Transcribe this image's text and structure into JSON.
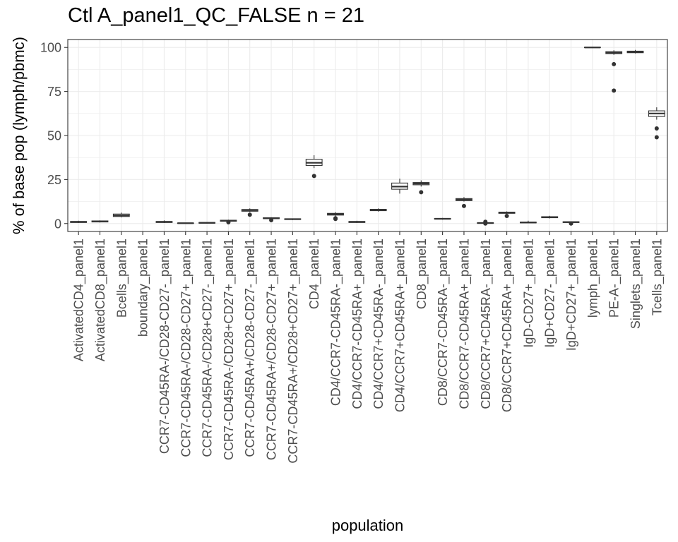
{
  "chart_data": {
    "type": "box",
    "title": "Ctl A_panel1_QC_FALSE n = 21",
    "xlabel": "population",
    "ylabel": "% of base pop (lymph/pbmc)",
    "ylim": [
      -4.5,
      104.5
    ],
    "yticks": [
      0,
      25,
      50,
      75,
      100
    ],
    "grid": true,
    "theme": "bw",
    "colors": {
      "box_fill": "#ffffff",
      "box_line": "#333333",
      "grid": "#ebebeb",
      "panel_border": "#333333"
    },
    "categories": [
      "ActivatedCD4_panel1",
      "ActivatedCD8_panel1",
      "Bcells_panel1",
      "boundary_panel1",
      "CCR7-CD45RA-/CD28-CD27-_panel1",
      "CCR7-CD45RA-/CD28-CD27+_panel1",
      "CCR7-CD45RA-/CD28+CD27-_panel1",
      "CCR7-CD45RA-/CD28+CD27+_panel1",
      "CCR7-CD45RA+/CD28-CD27-_panel1",
      "CCR7-CD45RA+/CD28-CD27+_panel1",
      "CCR7-CD45RA+/CD28+CD27+_panel1",
      "CD4_panel1",
      "CD4/CCR7-CD45RA-_panel1",
      "CD4/CCR7-CD45RA+_panel1",
      "CD4/CCR7+CD45RA-_panel1",
      "CD4/CCR7+CD45RA+_panel1",
      "CD8_panel1",
      "CD8/CCR7-CD45RA-_panel1",
      "CD8/CCR7-CD45RA+_panel1",
      "CD8/CCR7+CD45RA-_panel1",
      "CD8/CCR7+CD45RA+_panel1",
      "IgD-CD27+_panel1",
      "IgD+CD27-_panel1",
      "IgD+CD27+_panel1",
      "lymph_panel1",
      "PE-A-_panel1",
      "Singlets_panel1",
      "Tcells_panel1"
    ],
    "boxes": [
      {
        "min": 0.3,
        "q1": 0.6,
        "median": 0.9,
        "q3": 1.2,
        "max": 1.6,
        "outliers": []
      },
      {
        "min": 0.6,
        "q1": 0.9,
        "median": 1.2,
        "q3": 1.5,
        "max": 1.8,
        "outliers": []
      },
      {
        "min": 3.5,
        "q1": 4.0,
        "median": 4.6,
        "q3": 5.4,
        "max": 6.2,
        "outliers": []
      },
      null,
      {
        "min": 0.3,
        "q1": 0.6,
        "median": 0.9,
        "q3": 1.2,
        "max": 1.8,
        "outliers": []
      },
      {
        "min": 0.0,
        "q1": 0.1,
        "median": 0.2,
        "q3": 0.3,
        "max": 0.4,
        "outliers": []
      },
      {
        "min": 0.0,
        "q1": 0.2,
        "median": 0.4,
        "q3": 0.6,
        "max": 0.9,
        "outliers": []
      },
      {
        "min": 0.9,
        "q1": 1.3,
        "median": 1.6,
        "q3": 1.9,
        "max": 2.2,
        "outliers": [
          0.7
        ]
      },
      {
        "min": 6.5,
        "q1": 7.0,
        "median": 7.6,
        "q3": 8.0,
        "max": 8.6,
        "outliers": [
          5.0
        ]
      },
      {
        "min": 2.5,
        "q1": 2.8,
        "median": 3.0,
        "q3": 3.3,
        "max": 3.6,
        "outliers": [
          1.9
        ]
      },
      {
        "min": 2.0,
        "q1": 2.3,
        "median": 2.5,
        "q3": 2.7,
        "max": 2.9,
        "outliers": []
      },
      {
        "min": 31.5,
        "q1": 33.0,
        "median": 34.5,
        "q3": 36.5,
        "max": 38.8,
        "outliers": [
          27.0
        ]
      },
      {
        "min": 4.0,
        "q1": 4.8,
        "median": 5.3,
        "q3": 5.8,
        "max": 6.5,
        "outliers": [
          3.0,
          2.6
        ]
      },
      {
        "min": 0.3,
        "q1": 0.6,
        "median": 0.9,
        "q3": 1.2,
        "max": 1.6,
        "outliers": []
      },
      {
        "min": 6.8,
        "q1": 7.3,
        "median": 7.7,
        "q3": 8.1,
        "max": 8.6,
        "outliers": []
      },
      {
        "min": 17.0,
        "q1": 19.5,
        "median": 21.0,
        "q3": 23.0,
        "max": 25.5,
        "outliers": []
      },
      {
        "min": 21.0,
        "q1": 22.0,
        "median": 22.7,
        "q3": 23.3,
        "max": 24.5,
        "outliers": [
          17.8
        ]
      },
      {
        "min": 2.2,
        "q1": 2.5,
        "median": 2.7,
        "q3": 2.9,
        "max": 3.2,
        "outliers": []
      },
      {
        "min": 12.5,
        "q1": 13.0,
        "median": 13.6,
        "q3": 14.2,
        "max": 15.0,
        "outliers": [
          10.0
        ]
      },
      {
        "min": 0.0,
        "q1": 0.1,
        "median": 0.3,
        "q3": 0.5,
        "max": 0.8,
        "outliers": [
          1.0,
          0.0
        ]
      },
      {
        "min": 5.4,
        "q1": 5.8,
        "median": 6.2,
        "q3": 6.5,
        "max": 6.9,
        "outliers": [
          4.3
        ]
      },
      {
        "min": 0.2,
        "q1": 0.4,
        "median": 0.6,
        "q3": 0.8,
        "max": 1.6,
        "outliers": []
      },
      {
        "min": 2.9,
        "q1": 3.3,
        "median": 3.6,
        "q3": 3.9,
        "max": 4.4,
        "outliers": []
      },
      {
        "min": 0.3,
        "q1": 0.6,
        "median": 0.8,
        "q3": 1.0,
        "max": 1.3,
        "outliers": [
          0.0
        ]
      },
      {
        "min": 99.8,
        "q1": 99.9,
        "median": 100.0,
        "q3": 100.1,
        "max": 100.2,
        "outliers": []
      },
      {
        "min": 95.8,
        "q1": 96.5,
        "median": 97.0,
        "q3": 97.6,
        "max": 98.4,
        "outliers": [
          90.5,
          75.5
        ]
      },
      {
        "min": 96.6,
        "q1": 97.0,
        "median": 97.4,
        "q3": 97.9,
        "max": 98.6,
        "outliers": []
      },
      {
        "min": 59.0,
        "q1": 60.8,
        "median": 62.5,
        "q3": 64.0,
        "max": 66.0,
        "outliers": [
          54.0,
          49.0
        ]
      }
    ]
  }
}
